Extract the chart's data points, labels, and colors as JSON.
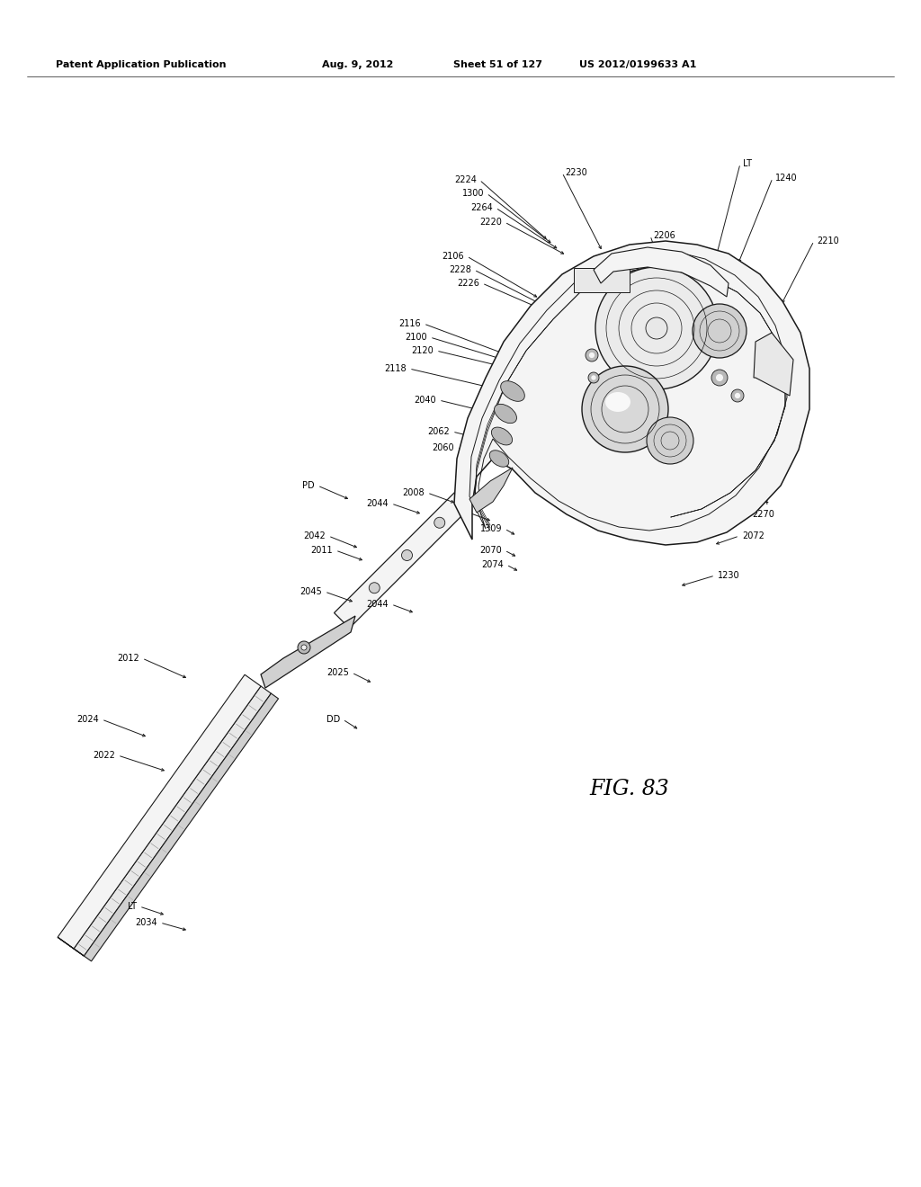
{
  "page_header_left": "Patent Application Publication",
  "page_header_mid": "Aug. 9, 2012",
  "page_header_right1": "Sheet 51 of 127",
  "page_header_right2": "US 2012/0199633 A1",
  "figure_label": "FIG. 83",
  "bg_color": "#ffffff",
  "line_color": "#1a1a1a",
  "text_color": "#000000"
}
